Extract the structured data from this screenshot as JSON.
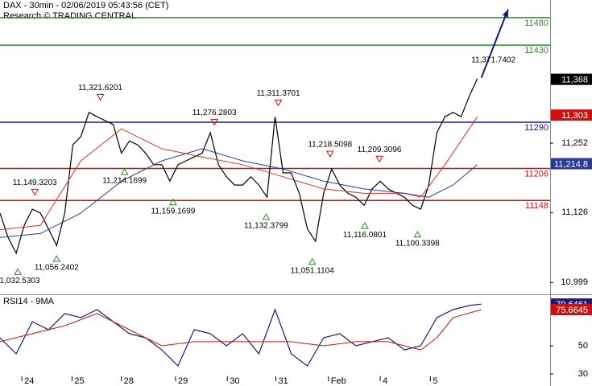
{
  "header": {
    "title": "DAX - 30min - 02/06/2019 05:43:56 (CET)",
    "source": "Research © TRADING CENTRAL"
  },
  "chart_data": [
    {
      "type": "line",
      "xlim": [
        0,
        68
      ],
      "ylim": [
        10979,
        11512
      ],
      "yticks": [
        {
          "value": 11252,
          "label": "11,252"
        },
        {
          "value": 11126,
          "label": "11,126"
        },
        {
          "value": 10999,
          "label": "10,999"
        }
      ],
      "levels": [
        {
          "value": 11480,
          "color": "#2e8b2e"
        },
        {
          "value": 11430,
          "color": "#2e8b2e"
        },
        {
          "value": 11290,
          "color": "#1a1aa0"
        },
        {
          "value": 11206,
          "color": "#cc1111"
        },
        {
          "value": 11148,
          "color": "#cc1111"
        }
      ],
      "series": [
        {
          "color": "#000000",
          "x": [
            0,
            1,
            2,
            3,
            4,
            5,
            6,
            7,
            8,
            9,
            10,
            11,
            12,
            13,
            14,
            15,
            16,
            17,
            18,
            19,
            20,
            21,
            22,
            23,
            24,
            25,
            26,
            27,
            28,
            29,
            30,
            31,
            32,
            33,
            34,
            35,
            36,
            37,
            38,
            39,
            40,
            41,
            42,
            43,
            44,
            45,
            46,
            47,
            48,
            49,
            50,
            51,
            52,
            53,
            54,
            55,
            56,
            57,
            58,
            59
          ],
          "values": [
            11125,
            11081,
            11052,
            11103,
            11132,
            11125,
            11096,
            11066,
            11125,
            11249,
            11264,
            11308,
            11300,
            11293,
            11286,
            11234,
            11256,
            11249,
            11234,
            11213,
            11213,
            11183,
            11213,
            11220,
            11227,
            11234,
            11271,
            11213,
            11191,
            11176,
            11176,
            11191,
            11176,
            11154,
            11300,
            11198,
            11198,
            11161,
            11096,
            11074,
            11161,
            11205,
            11176,
            11161,
            11154,
            11139,
            11169,
            11183,
            11169,
            11161,
            11154,
            11139,
            11132,
            11176,
            11271,
            11300,
            11308,
            11300,
            11337,
            11369
          ]
        },
        {
          "color": "#e0302a",
          "x": [
            0,
            5,
            10,
            15,
            20,
            25,
            30,
            35,
            40,
            45,
            50,
            52,
            55,
            59
          ],
          "values": [
            11095,
            11103,
            11220,
            11278,
            11242,
            11227,
            11213,
            11191,
            11169,
            11161,
            11161,
            11154,
            11213,
            11300
          ]
        },
        {
          "color": "#2a3a9a",
          "x": [
            0,
            5,
            10,
            15,
            20,
            25,
            30,
            35,
            40,
            45,
            50,
            53,
            56,
            59
          ],
          "values": [
            11081,
            11088,
            11125,
            11183,
            11220,
            11242,
            11220,
            11205,
            11183,
            11169,
            11161,
            11154,
            11176,
            11213
          ]
        }
      ],
      "projection": {
        "color": "#0a1f7a",
        "x": [
          59.5,
          62.8
        ],
        "values": [
          11371,
          11495
        ]
      },
      "last_values": [
        {
          "value": 11368,
          "label": "11,368",
          "color": "#000000"
        },
        {
          "value": 11303,
          "label": "11,303",
          "color": "#cc1111"
        },
        {
          "value": 11214.8,
          "label": "11,214.8",
          "color": "#2a3a9a"
        }
      ],
      "annotations": [
        {
          "x": 12.4,
          "value": 11321.6201,
          "label": "11,321.6201",
          "kind": "high"
        },
        {
          "x": 34.4,
          "value": 11311.3701,
          "label": "11,311.3701",
          "kind": "high"
        },
        {
          "x": 26.5,
          "value": 11276.2803,
          "label": "11,276.2803",
          "kind": "high"
        },
        {
          "x": 40.8,
          "value": 11218.5098,
          "label": "11,218.5098",
          "kind": "high"
        },
        {
          "x": 46.9,
          "value": 11209.3096,
          "label": "11,209.3096",
          "kind": "high"
        },
        {
          "x": 4.3,
          "value": 11149.3203,
          "label": "11,149.3203",
          "kind": "high"
        },
        {
          "x": 59.5,
          "value": 11371.7402,
          "label": "11,371.7402",
          "kind": "label"
        },
        {
          "x": 15.4,
          "value": 11214.1699,
          "label": "11,214.1699",
          "kind": "low"
        },
        {
          "x": 21.4,
          "value": 11159.1699,
          "label": "11,159.1699",
          "kind": "low"
        },
        {
          "x": 32.9,
          "value": 11132.3799,
          "label": "11,132.3799",
          "kind": "low"
        },
        {
          "x": 45.1,
          "value": 11116.0801,
          "label": "11,116.0801",
          "kind": "low"
        },
        {
          "x": 51.6,
          "value": 11100.3398,
          "label": "11,100.3398",
          "kind": "low"
        },
        {
          "x": 7.0,
          "value": 11056.2402,
          "label": "11,056.2402",
          "kind": "low"
        },
        {
          "x": 2.2,
          "value": 11032.5303,
          "label": "11,032.5303",
          "kind": "low"
        },
        {
          "x": 38.6,
          "value": 11051.1104,
          "label": "11,051.1104",
          "kind": "low"
        }
      ]
    },
    {
      "type": "line",
      "title": "RSI14 - 9MA",
      "xlim": [
        0,
        68
      ],
      "ylim": [
        28.3,
        85.4
      ],
      "yticks": [
        50,
        30
      ],
      "xticks": [
        {
          "value": 2.7,
          "label": "24"
        },
        {
          "value": 8.9,
          "label": "25"
        },
        {
          "value": 15.0,
          "label": "28"
        },
        {
          "value": 21.7,
          "label": "29"
        },
        {
          "value": 28.1,
          "label": "30"
        },
        {
          "value": 34.1,
          "label": "31"
        },
        {
          "value": 40.6,
          "label": "Feb"
        },
        {
          "value": 47.0,
          "label": "4"
        },
        {
          "value": 53.2,
          "label": "5"
        }
      ],
      "series": [
        {
          "color": "#1a1a80",
          "x": [
            0,
            2,
            4,
            6,
            8,
            10,
            12,
            14,
            16,
            18,
            20,
            22,
            24,
            26,
            28,
            30,
            32,
            34,
            36,
            38,
            40,
            42,
            44,
            46,
            48,
            50,
            52,
            54,
            56,
            58,
            59.5
          ],
          "values": [
            55.7,
            44.3,
            67.1,
            61.4,
            72.9,
            70,
            75.7,
            67.1,
            58.6,
            55.7,
            47.1,
            35.7,
            61.4,
            58.6,
            50,
            58.6,
            44.3,
            75.7,
            44.3,
            35.7,
            55.7,
            58.6,
            50,
            52.9,
            55.7,
            47.1,
            50,
            70,
            75.7,
            78.6,
            79.6
          ]
        },
        {
          "color": "#cc1111",
          "x": [
            0,
            4,
            8,
            12,
            16,
            20,
            24,
            28,
            32,
            36,
            40,
            44,
            48,
            52,
            54,
            56,
            59.5
          ],
          "values": [
            52.9,
            58.6,
            64.3,
            72.9,
            61.4,
            50,
            52.9,
            52.9,
            52.9,
            52.9,
            50,
            52.9,
            52.9,
            47.1,
            55.7,
            70,
            75.7
          ]
        }
      ],
      "last_values": [
        {
          "value": 79.6461,
          "label": "79.6461",
          "color": "#1a1a80"
        },
        {
          "value": 75.6645,
          "label": "75.6645",
          "color": "#cc1111"
        }
      ]
    }
  ]
}
